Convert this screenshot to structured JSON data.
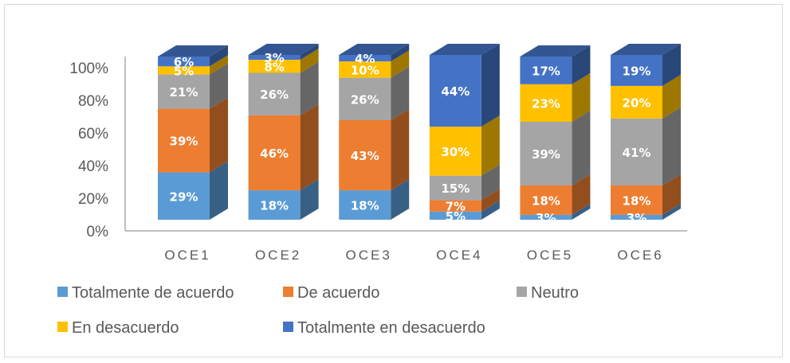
{
  "chart_data": {
    "type": "bar",
    "subtype": "stacked-100-3d",
    "title": "",
    "xlabel": "",
    "ylabel": "",
    "categories": [
      "OCE1",
      "OCE2",
      "OCE3",
      "OCE4",
      "OCE5",
      "OCE6"
    ],
    "series": [
      {
        "name": "Totalmente de acuerdo",
        "color": "#5b9bd5",
        "values": [
          29,
          18,
          18,
          5,
          3,
          3
        ]
      },
      {
        "name": "De acuerdo",
        "color": "#ed7d31",
        "values": [
          39,
          46,
          43,
          7,
          18,
          18
        ]
      },
      {
        "name": "Neutro",
        "color": "#a5a5a5",
        "values": [
          21,
          26,
          26,
          15,
          39,
          41
        ]
      },
      {
        "name": "En desacuerdo",
        "color": "#ffc000",
        "values": [
          5,
          8,
          10,
          30,
          23,
          20
        ]
      },
      {
        "name": "Totalmente en desacuerdo",
        "color": "#4472c4",
        "values": [
          6,
          3,
          4,
          44,
          17,
          19
        ]
      }
    ],
    "data_label_suffix": "%",
    "ylim": [
      0,
      100
    ],
    "yticks": [
      "0%",
      "20%",
      "40%",
      "60%",
      "80%",
      "100%"
    ],
    "grid": false,
    "legend": "bottom"
  }
}
